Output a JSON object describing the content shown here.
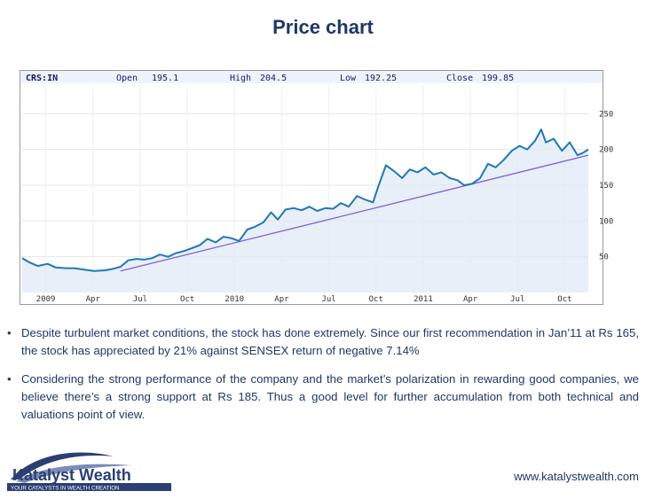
{
  "slide": {
    "title": "Price chart"
  },
  "quote": {
    "symbol": "CRS:IN",
    "open_label": "Open",
    "open_value": "195.1",
    "high_label": "High",
    "high_value": "204.5",
    "low_label": "Low",
    "low_value": "192.25",
    "close_label": "Close",
    "close_value": "199.85"
  },
  "chart_data": {
    "type": "line",
    "title": "",
    "xlabel": "",
    "ylabel": "",
    "ylim": [
      0,
      290
    ],
    "yticks": [
      50,
      100,
      150,
      200,
      250
    ],
    "x_tick_labels": [
      "2009",
      "Apr",
      "Jul",
      "Oct",
      "2010",
      "Apr",
      "Jul",
      "Oct",
      "2011",
      "Apr",
      "Jul",
      "Oct"
    ],
    "x_range": [
      "2008-11-01",
      "2011-10-31"
    ],
    "grid": true,
    "colors": {
      "price": "#1f78b4",
      "trend": "#7b5fd6",
      "fill": "#dfe8f7"
    },
    "series": [
      {
        "values": [
          {
            "x": "2008-11-01",
            "y": 48
          },
          {
            "x": "2008-11-15",
            "y": 42
          },
          {
            "x": "2008-12-01",
            "y": 37
          },
          {
            "x": "2008-12-20",
            "y": 40
          },
          {
            "x": "2009-01-05",
            "y": 35
          },
          {
            "x": "2009-01-25",
            "y": 34
          },
          {
            "x": "2009-02-10",
            "y": 34
          },
          {
            "x": "2009-03-01",
            "y": 32
          },
          {
            "x": "2009-03-20",
            "y": 30
          },
          {
            "x": "2009-04-10",
            "y": 31
          },
          {
            "x": "2009-04-25",
            "y": 33
          },
          {
            "x": "2009-05-10",
            "y": 36
          },
          {
            "x": "2009-05-25",
            "y": 45
          },
          {
            "x": "2009-06-10",
            "y": 47
          },
          {
            "x": "2009-06-25",
            "y": 46
          },
          {
            "x": "2009-07-10",
            "y": 48
          },
          {
            "x": "2009-07-25",
            "y": 53
          },
          {
            "x": "2009-08-10",
            "y": 50
          },
          {
            "x": "2009-08-25",
            "y": 55
          },
          {
            "x": "2009-09-10",
            "y": 58
          },
          {
            "x": "2009-09-25",
            "y": 62
          },
          {
            "x": "2009-10-10",
            "y": 66
          },
          {
            "x": "2009-10-25",
            "y": 75
          },
          {
            "x": "2009-11-10",
            "y": 70
          },
          {
            "x": "2009-11-25",
            "y": 78
          },
          {
            "x": "2009-12-10",
            "y": 76
          },
          {
            "x": "2009-12-25",
            "y": 72
          },
          {
            "x": "2010-01-10",
            "y": 88
          },
          {
            "x": "2010-01-25",
            "y": 92
          },
          {
            "x": "2010-02-10",
            "y": 98
          },
          {
            "x": "2010-02-25",
            "y": 112
          },
          {
            "x": "2010-03-10",
            "y": 102
          },
          {
            "x": "2010-03-25",
            "y": 116
          },
          {
            "x": "2010-04-10",
            "y": 118
          },
          {
            "x": "2010-04-25",
            "y": 115
          },
          {
            "x": "2010-05-10",
            "y": 120
          },
          {
            "x": "2010-05-25",
            "y": 114
          },
          {
            "x": "2010-06-10",
            "y": 118
          },
          {
            "x": "2010-06-25",
            "y": 117
          },
          {
            "x": "2010-07-10",
            "y": 125
          },
          {
            "x": "2010-07-25",
            "y": 120
          },
          {
            "x": "2010-08-10",
            "y": 135
          },
          {
            "x": "2010-08-25",
            "y": 130
          },
          {
            "x": "2010-09-10",
            "y": 126
          },
          {
            "x": "2010-09-20",
            "y": 148
          },
          {
            "x": "2010-10-05",
            "y": 178
          },
          {
            "x": "2010-10-20",
            "y": 170
          },
          {
            "x": "2010-11-05",
            "y": 160
          },
          {
            "x": "2010-11-20",
            "y": 172
          },
          {
            "x": "2010-12-05",
            "y": 168
          },
          {
            "x": "2010-12-20",
            "y": 175
          },
          {
            "x": "2011-01-05",
            "y": 165
          },
          {
            "x": "2011-01-20",
            "y": 168
          },
          {
            "x": "2011-02-05",
            "y": 160
          },
          {
            "x": "2011-02-20",
            "y": 157
          },
          {
            "x": "2011-03-05",
            "y": 150
          },
          {
            "x": "2011-03-20",
            "y": 152
          },
          {
            "x": "2011-04-05",
            "y": 160
          },
          {
            "x": "2011-04-20",
            "y": 180
          },
          {
            "x": "2011-05-05",
            "y": 175
          },
          {
            "x": "2011-05-20",
            "y": 185
          },
          {
            "x": "2011-06-05",
            "y": 198
          },
          {
            "x": "2011-06-20",
            "y": 205
          },
          {
            "x": "2011-07-05",
            "y": 200
          },
          {
            "x": "2011-07-20",
            "y": 212
          },
          {
            "x": "2011-08-01",
            "y": 228
          },
          {
            "x": "2011-08-10",
            "y": 210
          },
          {
            "x": "2011-08-25",
            "y": 215
          },
          {
            "x": "2011-09-10",
            "y": 198
          },
          {
            "x": "2011-09-25",
            "y": 210
          },
          {
            "x": "2011-10-10",
            "y": 192
          },
          {
            "x": "2011-10-20",
            "y": 195
          },
          {
            "x": "2011-10-31",
            "y": 200
          }
        ]
      },
      {
        "values": [
          {
            "x": "2009-05-10",
            "y": 30
          },
          {
            "x": "2011-10-31",
            "y": 192
          }
        ]
      }
    ]
  },
  "bullets": [
    "Despite turbulent market conditions, the stock has done extremely. Since our first recommendation in Jan’11 at Rs 165, the stock has appreciated by 21% against SENSEX return of negative 7.14%",
    "Considering the strong performance of the company and the market’s polarization in rewarding good companies, we believe there’s a strong support at Rs 185. Thus a good level for further accumulation from both technical and valuations point of view."
  ],
  "footer": {
    "logo_name": "Katalyst Wealth",
    "logo_tagline": "YOUR CATALYSTS IN WEALTH CREATION",
    "website": "www.katalystwealth.com"
  }
}
